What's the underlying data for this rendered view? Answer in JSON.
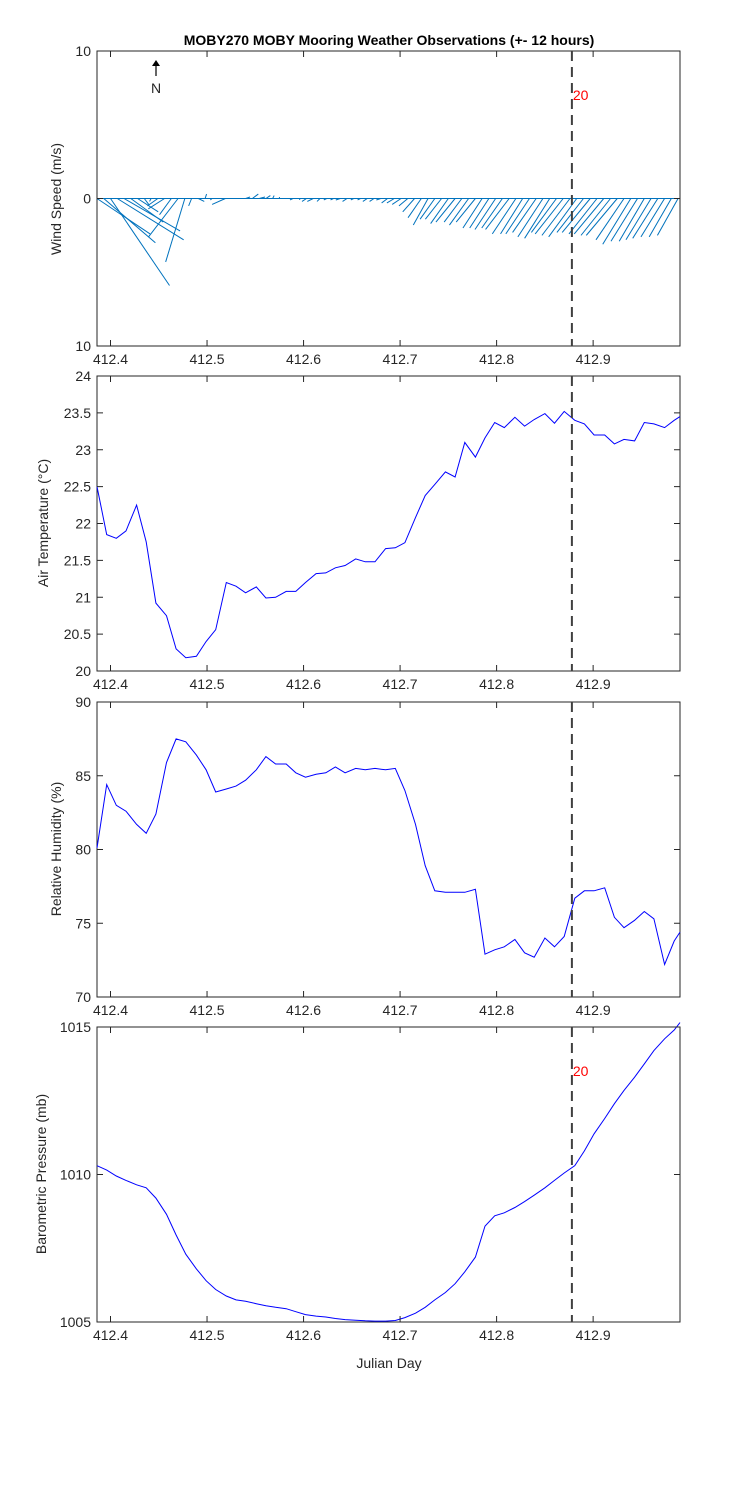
{
  "title": "MOBY270 MOBY Mooring Weather Observations (+- 12 hours)",
  "colors": {
    "line": "#0000ff",
    "wind": "#0072bd",
    "marker": "#404040",
    "annotation": "#ff0000",
    "axis": "#262626"
  },
  "chart_data": [
    {
      "type": "line",
      "name": "wind",
      "ylabel": "Wind Speed (m/s)",
      "xlim": [
        412.386,
        412.99
      ],
      "ylim": [
        -10,
        10
      ],
      "y_ticks": [
        -10,
        0,
        10
      ],
      "y_tick_labels": [
        "10",
        "0",
        "10"
      ],
      "x_ticks": [
        412.4,
        412.5,
        412.6,
        412.7,
        412.8,
        412.9
      ],
      "x_tick_labels": [
        "412.4",
        "412.5",
        "412.6",
        "412.7",
        "412.8",
        "412.9"
      ],
      "north_label": "N",
      "marker": {
        "x": 412.878,
        "label": "20"
      },
      "vectors": {
        "x": [
          412.386,
          412.393,
          412.4,
          412.407,
          412.414,
          412.421,
          412.428,
          412.435,
          412.442,
          412.449,
          412.456,
          412.463,
          412.47,
          412.477,
          412.484,
          412.491,
          412.498,
          412.505,
          412.512,
          412.519,
          412.526,
          412.533,
          412.54,
          412.547,
          412.554,
          412.561,
          412.568,
          412.575,
          412.582,
          412.589,
          412.596,
          412.603,
          412.61,
          412.617,
          412.624,
          412.631,
          412.638,
          412.645,
          412.652,
          412.659,
          412.666,
          412.673,
          412.68,
          412.687,
          412.694,
          412.701,
          412.708,
          412.715,
          412.722,
          412.729,
          412.736,
          412.743,
          412.75,
          412.757,
          412.764,
          412.771,
          412.778,
          412.785,
          412.792,
          412.799,
          412.806,
          412.813,
          412.82,
          412.827,
          412.834,
          412.841,
          412.848,
          412.855,
          412.862,
          412.869,
          412.876,
          412.883,
          412.89,
          412.897,
          412.904,
          412.911,
          412.918,
          412.925,
          412.932,
          412.939,
          412.946,
          412.953,
          412.96,
          412.967,
          412.974,
          412.981,
          412.988
        ],
        "u": [
          3.6,
          3.5,
          4.0,
          4.5,
          3.8,
          2.2,
          1.4,
          0.3,
          -0.1,
          -0.7,
          -1.1,
          -0.8,
          -2.0,
          -1.3,
          -0.2,
          0.4,
          0.1,
          -0.1,
          0.2,
          -0.9,
          0.1,
          0.2,
          0.3,
          0.4,
          0.4,
          0.3,
          0.1,
          0.0,
          -0.1,
          -0.2,
          0.0,
          -0.3,
          -0.4,
          -0.2,
          -0.2,
          -0.2,
          -0.3,
          -0.3,
          -0.2,
          -0.2,
          -0.3,
          -0.3,
          -0.3,
          -0.4,
          -0.5,
          -0.6,
          -0.6,
          -0.8,
          -0.9,
          -1.0,
          -1.0,
          -1.1,
          -1.2,
          -1.3,
          -1.2,
          -1.3,
          -1.3,
          -1.3,
          -1.3,
          -1.4,
          -1.4,
          -1.6,
          -1.6,
          -1.5,
          -1.6,
          -1.6,
          -1.7,
          -1.7,
          -1.7,
          -1.9,
          -1.9,
          -1.9,
          -1.8,
          -1.9,
          -1.9,
          -2.0,
          -2.0,
          -2.1,
          -1.9,
          -1.9,
          -1.8,
          -1.7,
          -1.7,
          -1.7,
          -1.6,
          -1.5,
          -1.4
        ],
        "v": [
          -2.4,
          -3.0,
          -5.9,
          -2.8,
          -2.2,
          -1.6,
          -0.9,
          -0.4,
          -0.2,
          -0.5,
          -0.7,
          -1.1,
          -2.6,
          -4.3,
          -0.5,
          -0.2,
          0.3,
          -0.1,
          0.0,
          -0.4,
          0.0,
          0.0,
          0.1,
          0.3,
          0.1,
          0.2,
          0.2,
          0.1,
          0.0,
          -0.1,
          -0.1,
          -0.2,
          -0.2,
          -0.2,
          -0.1,
          -0.1,
          -0.1,
          -0.2,
          -0.1,
          -0.1,
          -0.2,
          -0.2,
          -0.1,
          -0.3,
          -0.3,
          -0.4,
          -0.5,
          -0.9,
          -1.3,
          -1.8,
          -1.4,
          -1.4,
          -1.7,
          -1.6,
          -1.6,
          -1.8,
          -1.6,
          -2.0,
          -2.0,
          -2.1,
          -2.0,
          -2.1,
          -2.4,
          -2.4,
          -2.4,
          -2.3,
          -2.6,
          -2.7,
          -2.3,
          -2.4,
          -2.5,
          -2.6,
          -2.3,
          -2.3,
          -2.4,
          -2.4,
          -2.5,
          -2.5,
          -2.8,
          -3.1,
          -2.9,
          -2.9,
          -2.8,
          -2.7,
          -2.6,
          -2.6,
          -2.5
        ]
      }
    },
    {
      "type": "line",
      "name": "air-temperature",
      "ylabel": "Air Temperature (°C)",
      "xlim": [
        412.386,
        412.99
      ],
      "ylim": [
        20,
        24
      ],
      "y_ticks": [
        20,
        20.5,
        21,
        21.5,
        22,
        22.5,
        23,
        23.5,
        24
      ],
      "y_tick_labels": [
        "20",
        "20.5",
        "21",
        "21.5",
        "22",
        "22.5",
        "23",
        "23.5",
        "24"
      ],
      "x_ticks": [
        412.4,
        412.5,
        412.6,
        412.7,
        412.8,
        412.9
      ],
      "x_tick_labels": [
        "412.4",
        "412.5",
        "412.6",
        "412.7",
        "412.8",
        "412.9"
      ],
      "marker": {
        "x": 412.878
      },
      "x": [
        412.386,
        412.396,
        412.406,
        412.416,
        412.427,
        412.437,
        412.447,
        412.458,
        412.468,
        412.478,
        412.489,
        412.499,
        412.509,
        412.52,
        412.53,
        412.54,
        412.551,
        412.561,
        412.571,
        412.582,
        412.592,
        412.602,
        412.613,
        412.623,
        412.633,
        412.643,
        412.654,
        412.664,
        412.674,
        412.685,
        412.695,
        412.705,
        412.716,
        412.726,
        412.736,
        412.747,
        412.757,
        412.767,
        412.778,
        412.788,
        412.798,
        412.808,
        412.819,
        412.829,
        412.839,
        412.85,
        412.86,
        412.87,
        412.881,
        412.891,
        412.901,
        412.912,
        412.922,
        412.932,
        412.943,
        412.953,
        412.963,
        412.974,
        412.984,
        412.99
      ],
      "y": [
        22.5,
        21.85,
        21.8,
        21.9,
        22.25,
        21.75,
        20.92,
        20.75,
        20.3,
        20.18,
        20.2,
        20.4,
        20.56,
        21.2,
        21.15,
        21.06,
        21.14,
        20.99,
        21.0,
        21.08,
        21.08,
        21.2,
        21.32,
        21.33,
        21.4,
        21.43,
        21.52,
        21.48,
        21.48,
        21.66,
        21.67,
        21.74,
        22.08,
        22.38,
        22.53,
        22.7,
        22.63,
        23.1,
        22.9,
        23.16,
        23.37,
        23.3,
        23.44,
        23.32,
        23.41,
        23.49,
        23.36,
        23.52,
        23.4,
        23.35,
        23.2,
        23.2,
        23.08,
        23.14,
        23.12,
        23.37,
        23.35,
        23.3,
        23.4,
        23.45
      ]
    },
    {
      "type": "line",
      "name": "relative-humidity",
      "ylabel": "Relative Humidity (%)",
      "xlim": [
        412.386,
        412.99
      ],
      "ylim": [
        70,
        90
      ],
      "y_ticks": [
        70,
        75,
        80,
        85,
        90
      ],
      "y_tick_labels": [
        "70",
        "75",
        "80",
        "85",
        "90"
      ],
      "x_ticks": [
        412.4,
        412.5,
        412.6,
        412.7,
        412.8,
        412.9
      ],
      "x_tick_labels": [
        "412.4",
        "412.5",
        "412.6",
        "412.7",
        "412.8",
        "412.9"
      ],
      "marker": {
        "x": 412.878
      },
      "x": [
        412.386,
        412.396,
        412.406,
        412.416,
        412.427,
        412.437,
        412.447,
        412.458,
        412.468,
        412.478,
        412.489,
        412.499,
        412.509,
        412.52,
        412.53,
        412.54,
        412.551,
        412.561,
        412.571,
        412.582,
        412.592,
        412.602,
        412.613,
        412.623,
        412.633,
        412.643,
        412.654,
        412.664,
        412.674,
        412.685,
        412.695,
        412.705,
        412.716,
        412.726,
        412.736,
        412.747,
        412.757,
        412.767,
        412.778,
        412.788,
        412.798,
        412.808,
        412.819,
        412.829,
        412.839,
        412.85,
        412.86,
        412.87,
        412.881,
        412.891,
        412.901,
        412.912,
        412.922,
        412.932,
        412.943,
        412.953,
        412.963,
        412.974,
        412.984,
        412.99
      ],
      "y": [
        80.1,
        84.4,
        83.0,
        82.6,
        81.7,
        81.1,
        82.4,
        85.9,
        87.5,
        87.3,
        86.4,
        85.4,
        83.9,
        84.1,
        84.3,
        84.7,
        85.4,
        86.3,
        85.8,
        85.8,
        85.2,
        84.9,
        85.1,
        85.2,
        85.6,
        85.2,
        85.5,
        85.4,
        85.5,
        85.4,
        85.5,
        84.0,
        81.7,
        78.9,
        77.2,
        77.1,
        77.1,
        77.1,
        77.3,
        72.9,
        73.2,
        73.4,
        73.9,
        73.0,
        72.7,
        74.0,
        73.4,
        74.1,
        76.7,
        77.2,
        77.2,
        77.4,
        75.4,
        74.7,
        75.2,
        75.8,
        75.3,
        72.2,
        73.8,
        74.4
      ]
    },
    {
      "type": "line",
      "name": "barometric-pressure",
      "ylabel": "Barometric Pressure (mb)",
      "xlabel": "Julian Day",
      "xlim": [
        412.386,
        412.99
      ],
      "ylim": [
        1005,
        1015
      ],
      "y_ticks": [
        1005,
        1010,
        1015
      ],
      "y_tick_labels": [
        "1005",
        "1010",
        "1015"
      ],
      "x_ticks": [
        412.4,
        412.5,
        412.6,
        412.7,
        412.8,
        412.9
      ],
      "x_tick_labels": [
        "412.4",
        "412.5",
        "412.6",
        "412.7",
        "412.8",
        "412.9"
      ],
      "marker": {
        "x": 412.878,
        "label": "20"
      },
      "x": [
        412.386,
        412.396,
        412.406,
        412.416,
        412.427,
        412.437,
        412.447,
        412.458,
        412.468,
        412.478,
        412.489,
        412.499,
        412.509,
        412.52,
        412.53,
        412.54,
        412.551,
        412.561,
        412.571,
        412.582,
        412.592,
        412.602,
        412.613,
        412.623,
        412.633,
        412.643,
        412.654,
        412.664,
        412.674,
        412.685,
        412.695,
        412.705,
        412.716,
        412.726,
        412.736,
        412.747,
        412.757,
        412.767,
        412.778,
        412.788,
        412.798,
        412.808,
        412.819,
        412.829,
        412.839,
        412.85,
        412.86,
        412.87,
        412.881,
        412.891,
        412.901,
        412.912,
        412.922,
        412.932,
        412.943,
        412.953,
        412.963,
        412.974,
        412.984,
        412.99
      ],
      "y": [
        1010.3,
        1010.15,
        1009.95,
        1009.8,
        1009.65,
        1009.55,
        1009.2,
        1008.65,
        1007.95,
        1007.3,
        1006.8,
        1006.4,
        1006.1,
        1005.88,
        1005.75,
        1005.7,
        1005.62,
        1005.55,
        1005.5,
        1005.45,
        1005.35,
        1005.25,
        1005.2,
        1005.17,
        1005.12,
        1005.08,
        1005.06,
        1005.04,
        1005.03,
        1005.03,
        1005.05,
        1005.15,
        1005.3,
        1005.5,
        1005.75,
        1006.0,
        1006.3,
        1006.7,
        1007.2,
        1008.25,
        1008.6,
        1008.7,
        1008.88,
        1009.08,
        1009.3,
        1009.55,
        1009.8,
        1010.05,
        1010.3,
        1010.8,
        1011.38,
        1011.9,
        1012.4,
        1012.85,
        1013.3,
        1013.75,
        1014.2,
        1014.6,
        1014.9,
        1015.15
      ]
    }
  ]
}
